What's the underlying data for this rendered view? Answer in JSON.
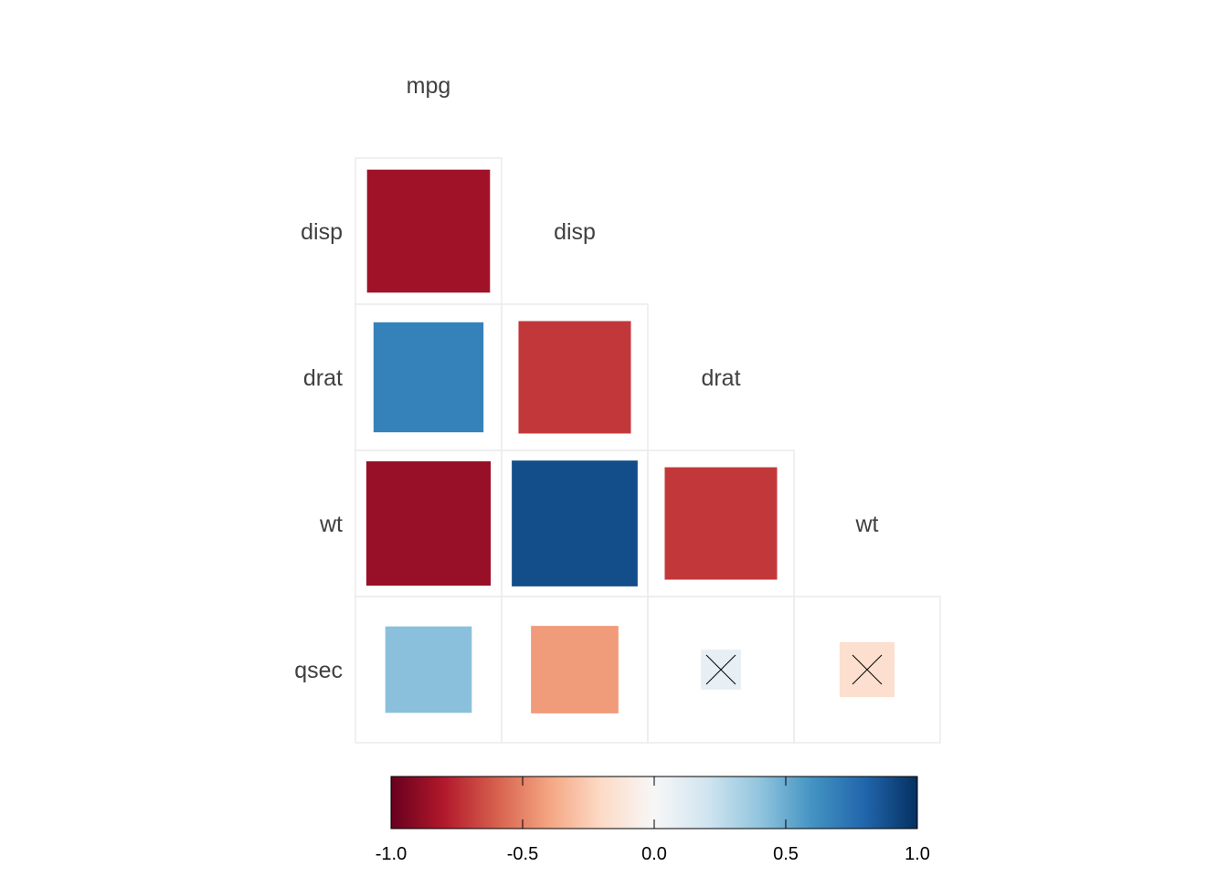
{
  "chart_data": {
    "type": "heatmap",
    "style": "lower-triangle correlation matrix, square glyphs sized by |r|, cross marks insignificant cells",
    "variables": [
      "mpg",
      "disp",
      "drat",
      "wt",
      "qsec"
    ],
    "cells": [
      {
        "row": "disp",
        "col": "mpg",
        "r": -0.85,
        "insignificant": false
      },
      {
        "row": "drat",
        "col": "mpg",
        "r": 0.68,
        "insignificant": false
      },
      {
        "row": "drat",
        "col": "disp",
        "r": -0.71,
        "insignificant": false
      },
      {
        "row": "wt",
        "col": "mpg",
        "r": -0.87,
        "insignificant": false
      },
      {
        "row": "wt",
        "col": "disp",
        "r": 0.89,
        "insignificant": false
      },
      {
        "row": "wt",
        "col": "drat",
        "r": -0.71,
        "insignificant": false
      },
      {
        "row": "qsec",
        "col": "mpg",
        "r": 0.42,
        "insignificant": false
      },
      {
        "row": "qsec",
        "col": "disp",
        "r": -0.43,
        "insignificant": false
      },
      {
        "row": "qsec",
        "col": "drat",
        "r": 0.09,
        "insignificant": true
      },
      {
        "row": "qsec",
        "col": "wt",
        "r": -0.17,
        "insignificant": true
      }
    ],
    "colorbar": {
      "ticks": [
        -1.0,
        -0.5,
        0.0,
        0.5,
        1.0
      ],
      "tick_labels": [
        "-1.0",
        "-0.5",
        "0.0",
        "0.5",
        "1.0"
      ],
      "range": [
        -1,
        1
      ],
      "palette": [
        "#67001F",
        "#B2182B",
        "#D6604D",
        "#F4A582",
        "#FDDBC7",
        "#F7F7F7",
        "#D1E5F0",
        "#92C5DE",
        "#4393C3",
        "#2166AC",
        "#053061"
      ]
    },
    "legend_placement": "bottom",
    "grid": true
  }
}
